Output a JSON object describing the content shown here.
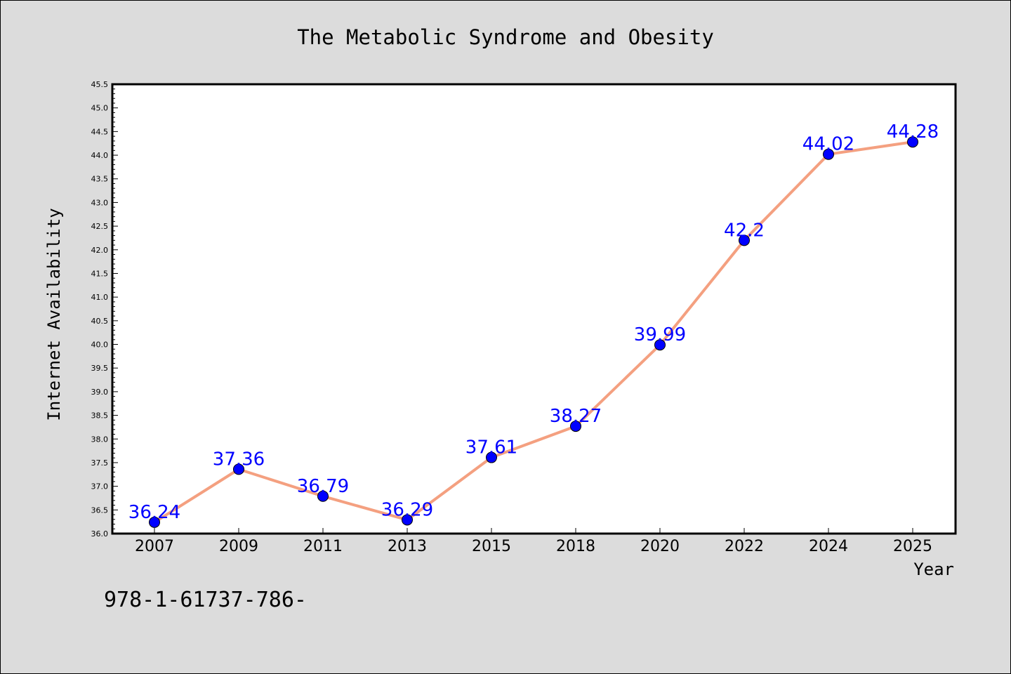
{
  "chart_data": {
    "type": "line",
    "title": "The Metabolic Syndrome and Obesity",
    "xlabel": "Year",
    "ylabel": "Internet Availability",
    "categories": [
      "2007",
      "2009",
      "2011",
      "2013",
      "2015",
      "2018",
      "2020",
      "2022",
      "2024",
      "2025"
    ],
    "values": [
      36.24,
      37.36,
      36.79,
      36.29,
      37.61,
      38.27,
      39.99,
      42.2,
      44.02,
      44.28
    ],
    "data_labels": [
      "36.24",
      "37.36",
      "36.79",
      "36.29",
      "37.61",
      "38.27",
      "39.99",
      "42.2",
      "44.02",
      "44.28"
    ],
    "ylim": [
      36.0,
      45.5
    ],
    "yticks": [
      "36.0",
      "36.5",
      "37.0",
      "37.5",
      "38.0",
      "38.5",
      "39.0",
      "39.5",
      "40.0",
      "40.5",
      "41.0",
      "41.5",
      "42.0",
      "42.5",
      "43.0",
      "43.5",
      "44.0",
      "44.5",
      "45.0",
      "45.5"
    ],
    "grid": false,
    "line_color": "#f4a080",
    "marker_color": "#0000ff",
    "label_color": "#0000ff"
  },
  "footer": {
    "text": "978-1-61737-786-"
  }
}
